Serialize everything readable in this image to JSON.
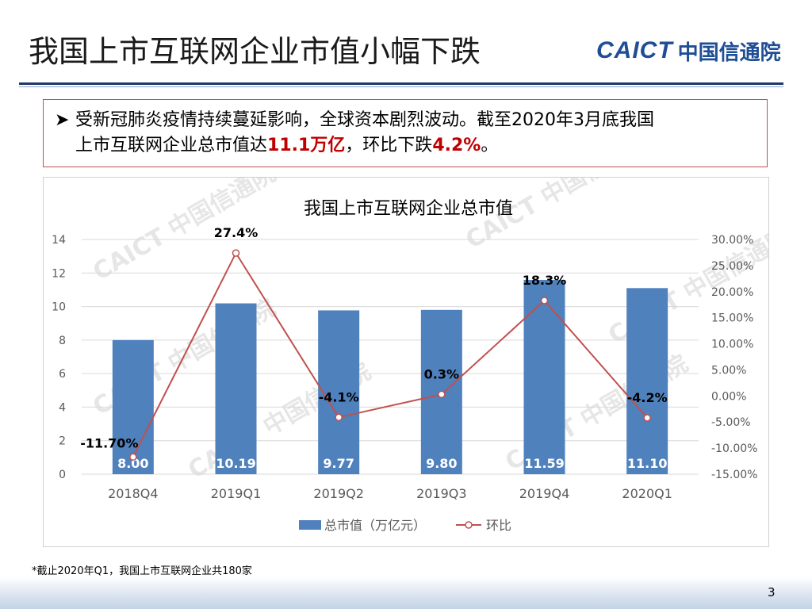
{
  "slide": {
    "title": "我国上市互联网企业市值小幅下跌",
    "logo_en": "CAICT",
    "logo_cn": "中国信通院",
    "callout": {
      "bullet_icon": "arrow-bullet-icon",
      "line1": "受新冠肺炎疫情持续蔓延影响，全球资本剧烈波动。截至2020年3月底我国",
      "line2_pre": "上市互联网企业总市值达",
      "line2_hl1": "11.1万亿",
      "line2_mid": "，环比下跌",
      "line2_hl2": "4.2%",
      "line2_post": "。"
    },
    "footnote": "*截止2020年Q1，我国上市互联网企业共180家",
    "page_number": "3"
  },
  "chart_data": {
    "type": "bar",
    "title": "我国上市互联网企业总市值",
    "categories": [
      "2018Q4",
      "2019Q1",
      "2019Q2",
      "2019Q3",
      "2019Q4",
      "2020Q1"
    ],
    "y_ticks": [
      "0",
      "2",
      "4",
      "6",
      "8",
      "10",
      "12",
      "14"
    ],
    "y2_ticks": [
      "-15.00%",
      "-10.00%",
      "-5.00%",
      "0.00%",
      "5.00%",
      "10.00%",
      "15.00%",
      "20.00%",
      "25.00%",
      "30.00%"
    ],
    "ylim": [
      0,
      14
    ],
    "y2lim": [
      -15,
      30
    ],
    "grid": true,
    "legend_position": "bottom",
    "series": [
      {
        "name": "总市值（万亿元）",
        "type": "bar",
        "axis": "left",
        "color": "#4f81bd",
        "values": [
          8.0,
          10.19,
          9.77,
          9.8,
          11.59,
          11.1
        ],
        "labels": [
          "8.00",
          "10.19",
          "9.77",
          "9.80",
          "11.59",
          "11.10"
        ]
      },
      {
        "name": "环比",
        "type": "line",
        "axis": "right",
        "color": "#c0504d",
        "values": [
          -11.7,
          27.4,
          -4.1,
          0.3,
          18.3,
          -4.2
        ],
        "labels": [
          "-11.70%",
          "27.4%",
          "-4.1%",
          "0.3%",
          "18.3%",
          "-4.2%"
        ]
      }
    ],
    "watermark_lines": [
      "CAICT 中国信通院",
      "CAICT 中国信通院",
      "CAICT 中国信通院",
      "CAICT 中国信通院",
      "CAICT 中国信通院",
      "CAICT 中国信通院"
    ]
  }
}
